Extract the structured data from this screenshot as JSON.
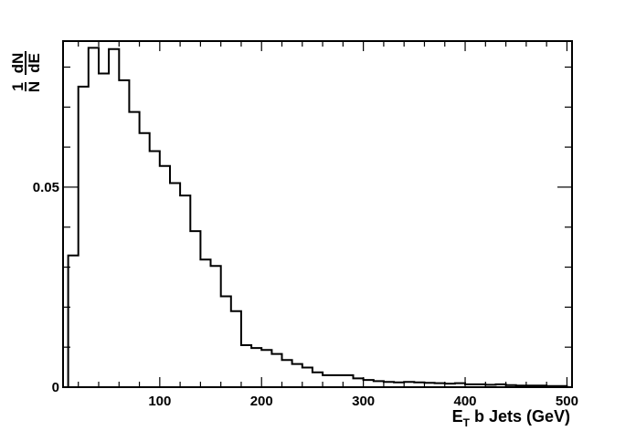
{
  "chart_data": {
    "type": "histogram",
    "x_label": {
      "main": "E",
      "subscript": "T",
      "rest": " b Jets (GeV)"
    },
    "y_label": {
      "numerator_left": "1",
      "denominator_left": "N",
      "numerator_right": "dN",
      "denominator_right": "dE"
    },
    "xlim": [
      5,
      505
    ],
    "ylim": [
      0,
      0.0865
    ],
    "x_ticks": [
      100,
      200,
      300,
      400,
      500
    ],
    "x_tick_labels": [
      "100",
      "200",
      "300",
      "400",
      "500"
    ],
    "y_ticks": [
      0,
      0.05
    ],
    "y_tick_labels": [
      "0",
      "0.05"
    ],
    "grid": false,
    "bin_edges": [
      10,
      20,
      30,
      40,
      50,
      60,
      70,
      80,
      90,
      100,
      110,
      120,
      130,
      140,
      150,
      160,
      170,
      180,
      190,
      200,
      210,
      220,
      230,
      240,
      250,
      260,
      270,
      280,
      290,
      300,
      310,
      320,
      330,
      340,
      350,
      360,
      370,
      380,
      390,
      400,
      410,
      420,
      430,
      440,
      450,
      460,
      470,
      480,
      490,
      500
    ],
    "values": [
      0.0329,
      0.0751,
      0.0848,
      0.0784,
      0.0845,
      0.0767,
      0.0688,
      0.0635,
      0.059,
      0.0553,
      0.051,
      0.0479,
      0.039,
      0.0319,
      0.0303,
      0.0227,
      0.019,
      0.0105,
      0.0098,
      0.0093,
      0.0083,
      0.0068,
      0.0058,
      0.0049,
      0.0037,
      0.003,
      0.003,
      0.003,
      0.0022,
      0.0018,
      0.0015,
      0.0013,
      0.0012,
      0.0013,
      0.0012,
      0.0011,
      0.001,
      0.0009,
      0.001,
      0.0007,
      0.0007,
      0.0006,
      0.0007,
      0.0005,
      0.0004,
      0.0004,
      0.0004,
      0.0003,
      0.0003
    ]
  }
}
